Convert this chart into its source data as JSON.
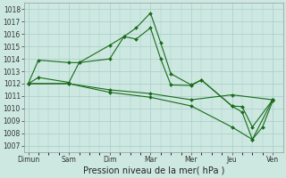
{
  "xlabel": "Pression niveau de la mer( hPa )",
  "x_labels": [
    "Dimun",
    "Sam",
    "Dim",
    "Mar",
    "Mer",
    "Jeu",
    "Ven"
  ],
  "ylim": [
    1006.5,
    1018.5
  ],
  "yticks": [
    1007,
    1008,
    1009,
    1010,
    1011,
    1012,
    1013,
    1014,
    1015,
    1016,
    1017,
    1018
  ],
  "line_color": "#1a6b1a",
  "bg_color": "#cce8e0",
  "grid_color": "#aacccc",
  "series": [
    {
      "x": [
        0,
        0.5,
        2,
        2.5,
        4,
        4.7,
        5.3,
        6,
        6.5,
        7,
        8,
        8.5,
        10,
        10.5,
        11,
        12
      ],
      "y": [
        1012.0,
        1013.9,
        1013.7,
        1013.7,
        1015.1,
        1015.8,
        1016.5,
        1017.7,
        1015.3,
        1012.8,
        1011.9,
        1012.3,
        1010.2,
        1009.7,
        1007.5,
        1010.7
      ]
    },
    {
      "x": [
        0,
        0.5,
        2,
        2.5,
        4,
        4.7,
        5.3,
        6,
        6.5,
        7,
        8,
        8.5,
        10,
        10.5,
        11,
        12
      ],
      "y": [
        1012.0,
        1012.5,
        1012.1,
        1013.7,
        1014.0,
        1015.8,
        1015.6,
        1016.5,
        1014.0,
        1011.9,
        1011.85,
        1012.3,
        1010.2,
        1010.15,
        1008.5,
        1010.7
      ]
    },
    {
      "x": [
        0,
        2,
        4,
        6,
        8,
        10,
        12
      ],
      "y": [
        1012.0,
        1012.0,
        1011.5,
        1011.2,
        1010.7,
        1011.1,
        1010.7
      ]
    },
    {
      "x": [
        0,
        2,
        4,
        6,
        8,
        10,
        11,
        11.5,
        12
      ],
      "y": [
        1012.0,
        1012.0,
        1011.3,
        1010.9,
        1010.2,
        1008.5,
        1007.5,
        1008.5,
        1010.6
      ]
    }
  ],
  "x_tick_positions": [
    0,
    2,
    4,
    6,
    8,
    10,
    12
  ],
  "xlim": [
    -0.2,
    12.5
  ],
  "xlabel_fontsize": 7,
  "tick_fontsize": 5.5
}
